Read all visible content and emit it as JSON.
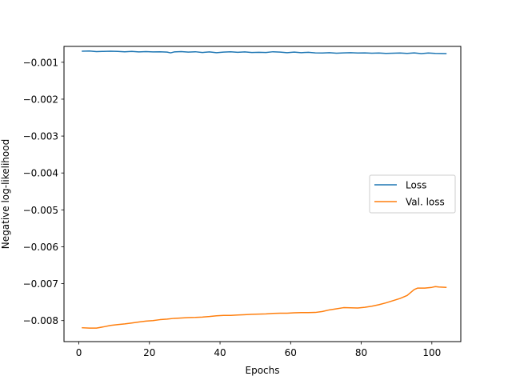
{
  "chart_data": {
    "type": "line",
    "title": "",
    "xlabel": "Epochs",
    "ylabel": "Negative log-likelihood",
    "xlim": [
      -4.2,
      108.2
    ],
    "ylim": [
      -0.00857,
      -0.00057
    ],
    "xticks": [
      0,
      20,
      40,
      60,
      80,
      100
    ],
    "xtick_labels": [
      "0",
      "20",
      "40",
      "60",
      "80",
      "100"
    ],
    "yticks": [
      -0.008,
      -0.007,
      -0.006,
      -0.005,
      -0.004,
      -0.003,
      -0.002,
      -0.001
    ],
    "ytick_labels": [
      "−0.008",
      "−0.007",
      "−0.006",
      "−0.005",
      "−0.004",
      "−0.003",
      "−0.002",
      "−0.001"
    ],
    "grid": false,
    "legend_position": "center-right",
    "series": [
      {
        "name": "Loss",
        "color": "#1f77b4",
        "points": [
          [
            1,
            -0.0007
          ],
          [
            3,
            -0.000695
          ],
          [
            5,
            -0.00071
          ],
          [
            7,
            -0.000705
          ],
          [
            9,
            -0.0007
          ],
          [
            11,
            -0.000705
          ],
          [
            13,
            -0.000715
          ],
          [
            15,
            -0.000705
          ],
          [
            17,
            -0.00072
          ],
          [
            19,
            -0.00071
          ],
          [
            21,
            -0.00072
          ],
          [
            23,
            -0.000715
          ],
          [
            25,
            -0.000725
          ],
          [
            26,
            -0.000745
          ],
          [
            27,
            -0.00072
          ],
          [
            29,
            -0.00071
          ],
          [
            31,
            -0.000725
          ],
          [
            33,
            -0.000715
          ],
          [
            35,
            -0.000735
          ],
          [
            37,
            -0.00072
          ],
          [
            39,
            -0.00074
          ],
          [
            41,
            -0.000725
          ],
          [
            43,
            -0.000715
          ],
          [
            45,
            -0.00073
          ],
          [
            47,
            -0.00072
          ],
          [
            49,
            -0.000735
          ],
          [
            51,
            -0.00073
          ],
          [
            53,
            -0.000735
          ],
          [
            55,
            -0.000715
          ],
          [
            57,
            -0.000725
          ],
          [
            59,
            -0.00074
          ],
          [
            61,
            -0.000725
          ],
          [
            63,
            -0.00074
          ],
          [
            65,
            -0.00073
          ],
          [
            67,
            -0.000745
          ],
          [
            69,
            -0.00075
          ],
          [
            71,
            -0.00074
          ],
          [
            73,
            -0.000755
          ],
          [
            75,
            -0.000745
          ],
          [
            77,
            -0.00074
          ],
          [
            79,
            -0.00075
          ],
          [
            81,
            -0.000745
          ],
          [
            83,
            -0.000755
          ],
          [
            85,
            -0.00075
          ],
          [
            87,
            -0.00076
          ],
          [
            89,
            -0.000755
          ],
          [
            91,
            -0.00075
          ],
          [
            93,
            -0.00076
          ],
          [
            95,
            -0.000745
          ],
          [
            97,
            -0.000765
          ],
          [
            99,
            -0.00075
          ],
          [
            101,
            -0.00076
          ],
          [
            104,
            -0.000765
          ]
        ]
      },
      {
        "name": "Val. loss",
        "color": "#ff7f0e",
        "points": [
          [
            1,
            -0.008195
          ],
          [
            3,
            -0.008205
          ],
          [
            5,
            -0.008205
          ],
          [
            7,
            -0.00817
          ],
          [
            9,
            -0.00813
          ],
          [
            11,
            -0.00811
          ],
          [
            13,
            -0.00809
          ],
          [
            15,
            -0.008065
          ],
          [
            17,
            -0.00804
          ],
          [
            19,
            -0.008015
          ],
          [
            21,
            -0.008
          ],
          [
            23,
            -0.007975
          ],
          [
            25,
            -0.00796
          ],
          [
            27,
            -0.00794
          ],
          [
            29,
            -0.00793
          ],
          [
            31,
            -0.00792
          ],
          [
            33,
            -0.007915
          ],
          [
            35,
            -0.007905
          ],
          [
            37,
            -0.00789
          ],
          [
            39,
            -0.00787
          ],
          [
            41,
            -0.00786
          ],
          [
            43,
            -0.00786
          ],
          [
            45,
            -0.00785
          ],
          [
            47,
            -0.00784
          ],
          [
            49,
            -0.00783
          ],
          [
            51,
            -0.007825
          ],
          [
            53,
            -0.00782
          ],
          [
            55,
            -0.007805
          ],
          [
            57,
            -0.0078
          ],
          [
            59,
            -0.0078
          ],
          [
            61,
            -0.00779
          ],
          [
            63,
            -0.007785
          ],
          [
            65,
            -0.007785
          ],
          [
            67,
            -0.00778
          ],
          [
            69,
            -0.007755
          ],
          [
            71,
            -0.00771
          ],
          [
            73,
            -0.00768
          ],
          [
            75,
            -0.00765
          ],
          [
            77,
            -0.007655
          ],
          [
            79,
            -0.00766
          ],
          [
            81,
            -0.00764
          ],
          [
            83,
            -0.00761
          ],
          [
            85,
            -0.00757
          ],
          [
            87,
            -0.00752
          ],
          [
            89,
            -0.00746
          ],
          [
            91,
            -0.0074
          ],
          [
            93,
            -0.00732
          ],
          [
            95,
            -0.00716
          ],
          [
            96,
            -0.00712
          ],
          [
            98,
            -0.00712
          ],
          [
            100,
            -0.0071
          ],
          [
            101,
            -0.00708
          ],
          [
            102,
            -0.00709
          ],
          [
            104,
            -0.0071
          ]
        ]
      }
    ]
  }
}
